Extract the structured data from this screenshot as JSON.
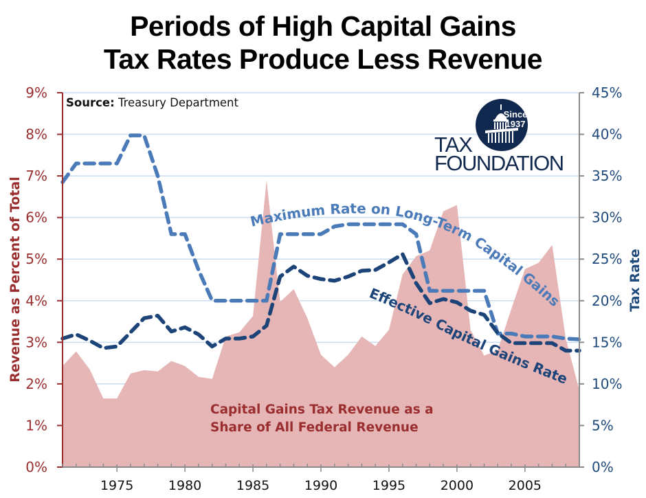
{
  "chart_data": {
    "type": "area",
    "title": "Periods of High Capital Gains Tax Rates Produce Less Revenue",
    "title_lines": [
      "Periods of High Capital Gains",
      "Tax Rates Produce Less Revenue"
    ],
    "source_label": "Source:",
    "source_text": "Treasury Department",
    "ylabel_left": "Revenue as Percent of Total",
    "ylabel_right": "Tax Rate",
    "ylim_left": [
      0,
      9
    ],
    "ylim_right": [
      0,
      45
    ],
    "yticks_left": [
      "0%",
      "1%",
      "2%",
      "3%",
      "4%",
      "5%",
      "6%",
      "7%",
      "8%",
      "9%"
    ],
    "yticks_right": [
      "0%",
      "5%",
      "10%",
      "15%",
      "20%",
      "25%",
      "30%",
      "35%",
      "40%",
      "45%"
    ],
    "xticks": [
      "1975",
      "1980",
      "1985",
      "1990",
      "1995",
      "2000",
      "2005"
    ],
    "xtick_years": [
      1975,
      1980,
      1985,
      1990,
      1995,
      2000,
      2005
    ],
    "xlim": [
      1971,
      2009
    ],
    "grid": true,
    "x": [
      1971,
      1972,
      1973,
      1974,
      1975,
      1976,
      1977,
      1978,
      1979,
      1980,
      1981,
      1982,
      1983,
      1984,
      1985,
      1986,
      1987,
      1988,
      1989,
      1990,
      1991,
      1992,
      1993,
      1994,
      1995,
      1996,
      1997,
      1998,
      1999,
      2000,
      2001,
      2002,
      2003,
      2004,
      2005,
      2006,
      2007,
      2008,
      2009
    ],
    "series": [
      {
        "name": "Capital Gains Tax Revenue as a Share of All Federal Revenue",
        "label_lines": [
          "Capital Gains Tax Revenue as a",
          "Share of All Federal Revenue"
        ],
        "axis": "left",
        "type": "area",
        "color": "#e6b5b5",
        "values": [
          2.43,
          2.78,
          2.35,
          1.65,
          1.65,
          2.25,
          2.33,
          2.3,
          2.55,
          2.43,
          2.17,
          2.12,
          3.14,
          3.24,
          3.63,
          6.89,
          3.97,
          4.28,
          3.58,
          2.7,
          2.4,
          2.7,
          3.14,
          2.91,
          3.3,
          4.63,
          5.07,
          5.21,
          6.15,
          6.3,
          3.3,
          2.68,
          2.81,
          3.8,
          4.76,
          4.91,
          5.34,
          3.09,
          1.85
        ]
      },
      {
        "name": "Maximum Rate on Long-Term Capital Gains",
        "axis": "right",
        "type": "line",
        "style": "dashed",
        "color": "#4a7ab8",
        "values": [
          34.25,
          36.5,
          36.5,
          36.5,
          36.5,
          39.875,
          39.875,
          35.0,
          28.0,
          28.0,
          23.7,
          20.0,
          20.0,
          20.0,
          20.0,
          20.0,
          28.0,
          28.0,
          28.0,
          28.0,
          28.93,
          29.19,
          29.19,
          29.19,
          29.19,
          29.19,
          28.0,
          21.19,
          21.19,
          21.19,
          21.19,
          21.19,
          16.05,
          16.05,
          15.7,
          15.7,
          15.7,
          15.45,
          15.35
        ]
      },
      {
        "name": "Effective Capital Gains Rate",
        "axis": "right",
        "type": "line",
        "style": "dashed",
        "color": "#1c4478",
        "values": [
          15.45,
          15.95,
          15.2,
          14.3,
          14.5,
          16.2,
          17.9,
          18.2,
          16.3,
          16.8,
          15.95,
          14.5,
          15.45,
          15.45,
          15.7,
          17.0,
          22.9,
          24.1,
          23.0,
          22.6,
          22.4,
          22.9,
          23.6,
          23.7,
          24.6,
          25.6,
          22.1,
          19.7,
          20.2,
          19.8,
          18.8,
          18.3,
          16.1,
          14.9,
          14.9,
          14.9,
          14.9,
          14.0,
          14.0
        ]
      }
    ]
  },
  "logo": {
    "since": "Since",
    "year": "1937",
    "tax": "TAX",
    "foundation": "FOUNDATION"
  },
  "colors": {
    "left_axis": "#9a2e2e",
    "right_axis": "#1f4a7c",
    "grid": "#c9dcf0",
    "logo_navy": "#12294f"
  }
}
